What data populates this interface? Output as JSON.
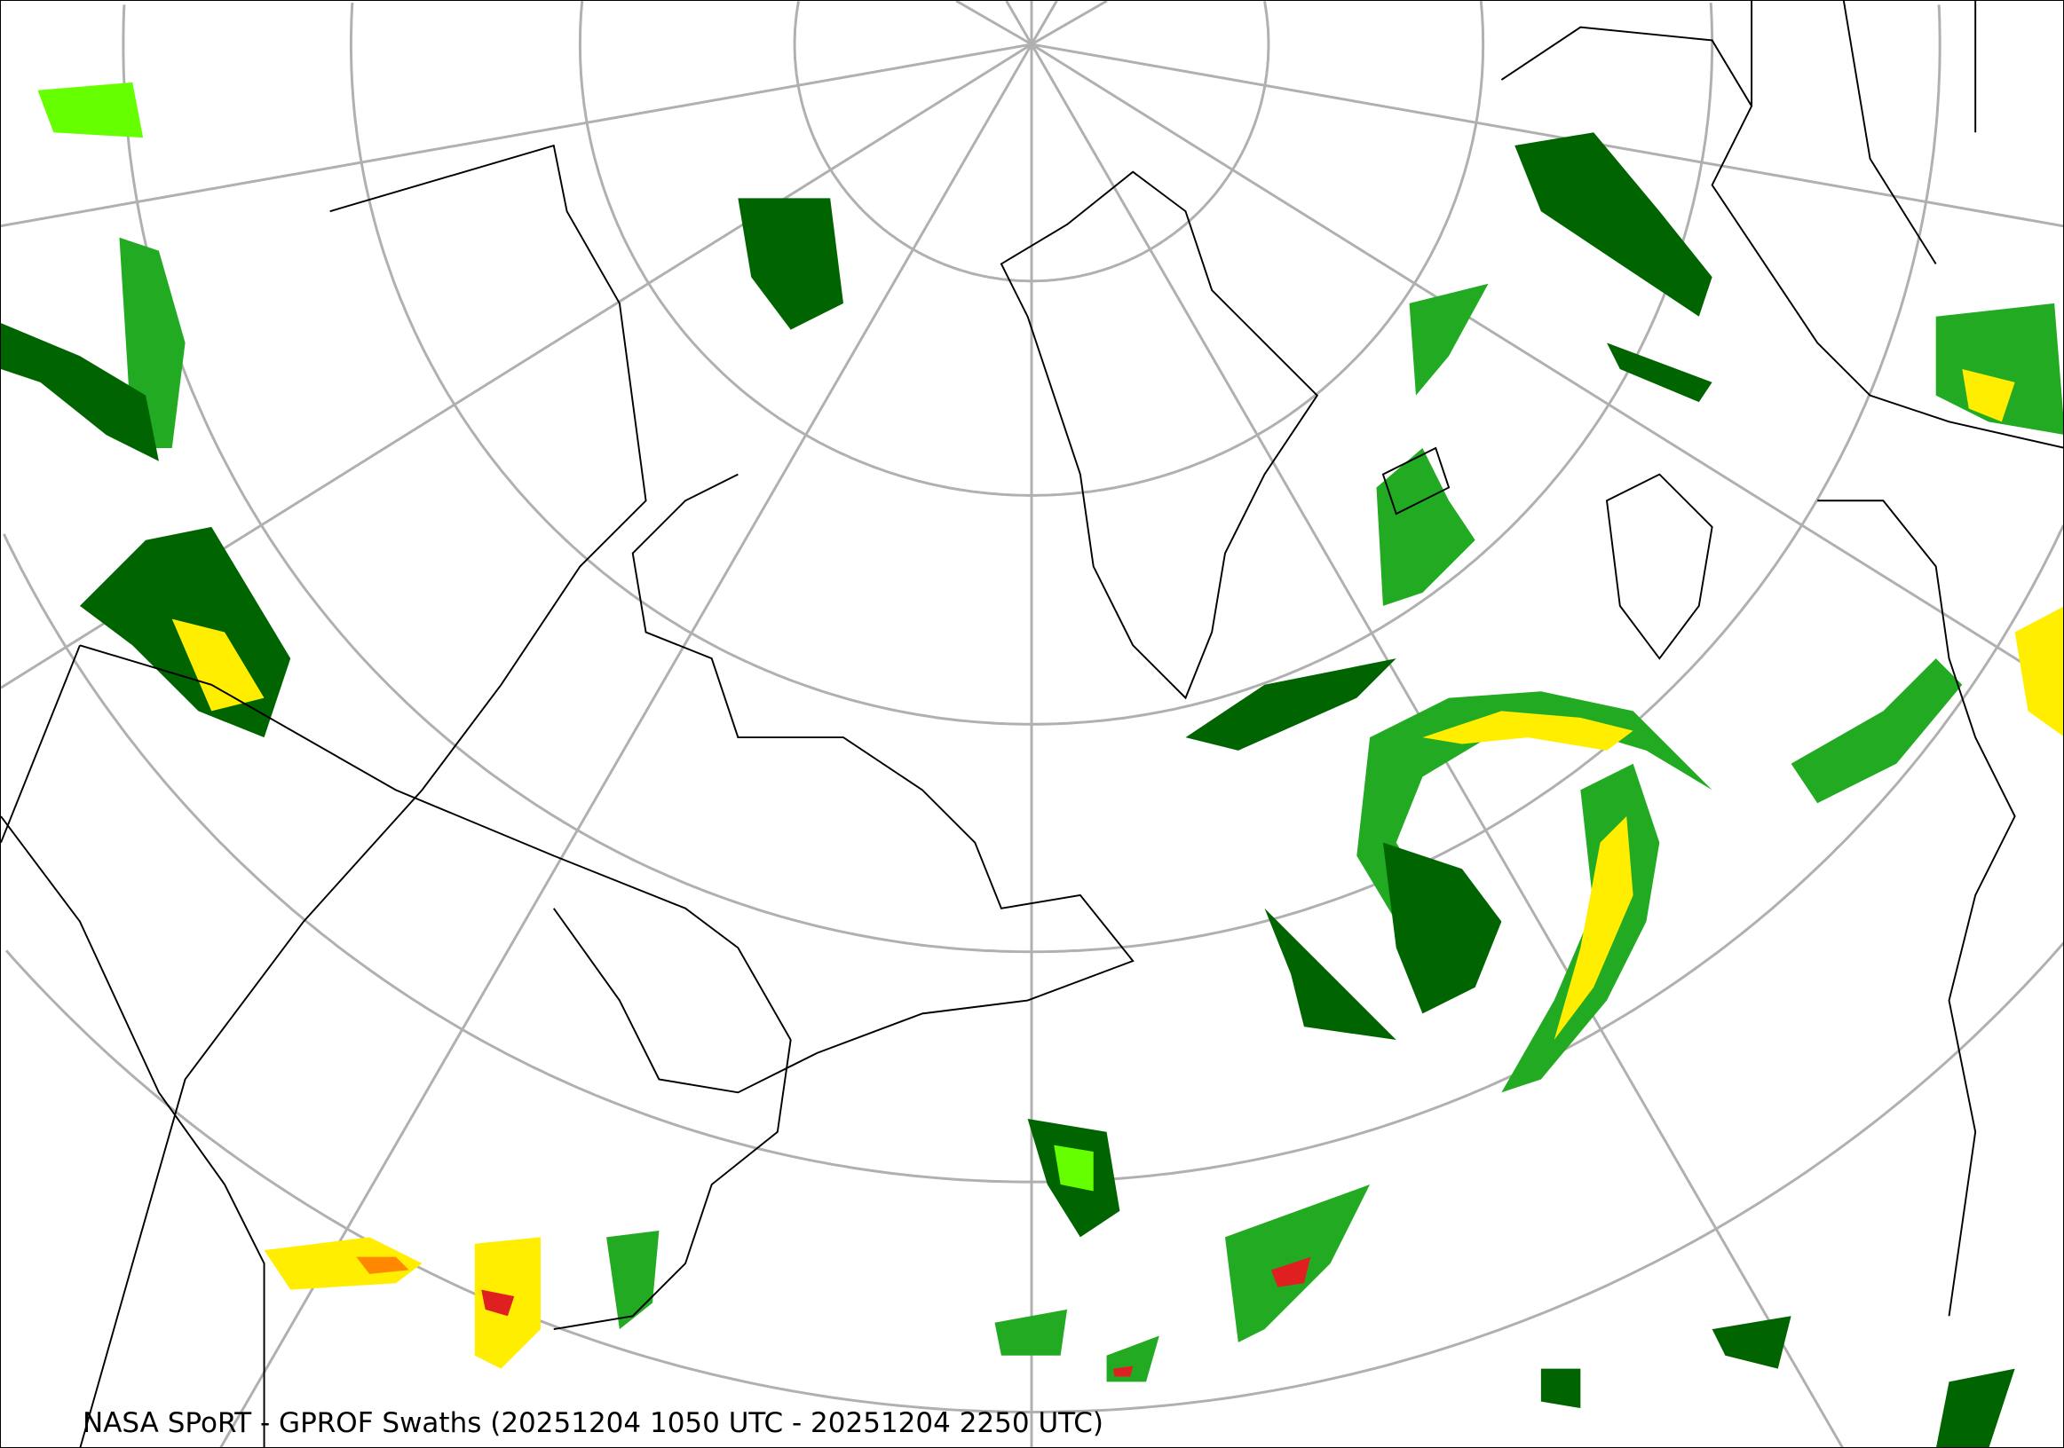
{
  "title": "NASA SPoRT - GPROF Swaths (20251204 1050 UTC - 20251204 2250 UTC)",
  "map": {
    "projection": "polar stereographic (North America / North Atlantic)",
    "layers": [
      "precipitation swaths",
      "coastlines",
      "country and state borders",
      "graticule"
    ],
    "colors": {
      "graticule": "#b0b0b0",
      "borders": "#000000",
      "precip_light": "#006400",
      "precip_moderate": "#22aa22",
      "precip_bright": "#66ff00",
      "precip_heavy": "#ffee00",
      "precip_intense": "#ff8800",
      "precip_extreme": "#e02020"
    }
  }
}
